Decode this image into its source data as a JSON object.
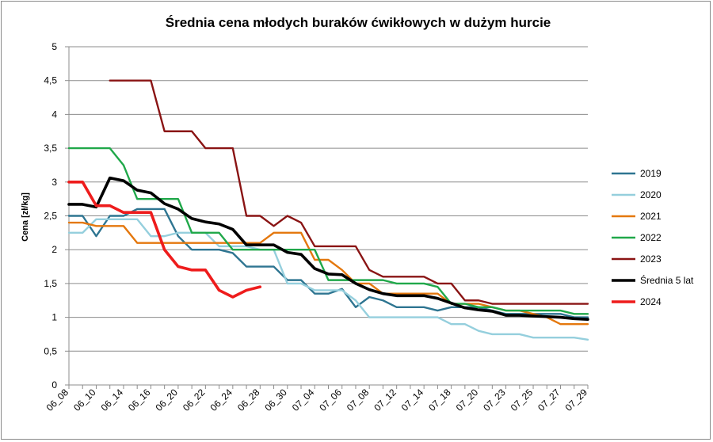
{
  "chart_data": {
    "type": "line",
    "title": "Średnia cena młodych buraków ćwikłowych w dużym hurcie",
    "xlabel": "",
    "ylabel": "Cena [zł/kg]",
    "ylim": [
      0,
      5
    ],
    "yticks": [
      {
        "value": 0,
        "label": "0"
      },
      {
        "value": 0.5,
        "label": "0,5"
      },
      {
        "value": 1,
        "label": "1"
      },
      {
        "value": 1.5,
        "label": "1,5"
      },
      {
        "value": 2,
        "label": "2"
      },
      {
        "value": 2.5,
        "label": "2,5"
      },
      {
        "value": 3,
        "label": "3"
      },
      {
        "value": 3.5,
        "label": "3,5"
      },
      {
        "value": 4,
        "label": "4"
      },
      {
        "value": 4.5,
        "label": "4,5"
      },
      {
        "value": 5,
        "label": "5"
      }
    ],
    "grid": true,
    "legend_position": "right",
    "categories": [
      "06_08",
      "06_09",
      "06_10",
      "06_11",
      "06_14",
      "06_15",
      "06_16",
      "06_17",
      "06_20",
      "06_21",
      "06_22",
      "06_23",
      "06_24",
      "06_25",
      "06_28",
      "06_29",
      "06_30",
      "07_01",
      "07_04",
      "07_05",
      "07_06",
      "07_07",
      "07_08",
      "07_11",
      "07_12",
      "07_13",
      "07_14",
      "07_15",
      "07_18",
      "07_19",
      "07_20",
      "07_22",
      "07_23",
      "07_24",
      "07_25",
      "07_26",
      "07_27",
      "07_28",
      "07_29"
    ],
    "tick_labels": [
      {
        "index": 0,
        "label": "06_08"
      },
      {
        "index": 2,
        "label": "06_10"
      },
      {
        "index": 4,
        "label": "06_14"
      },
      {
        "index": 6,
        "label": "06_16"
      },
      {
        "index": 8,
        "label": "06_20"
      },
      {
        "index": 10,
        "label": "06_22"
      },
      {
        "index": 12,
        "label": "06_24"
      },
      {
        "index": 14,
        "label": "06_28"
      },
      {
        "index": 16,
        "label": "06_30"
      },
      {
        "index": 18,
        "label": "07_04"
      },
      {
        "index": 20,
        "label": "07_06"
      },
      {
        "index": 22,
        "label": "07_08"
      },
      {
        "index": 24,
        "label": "07_12"
      },
      {
        "index": 26,
        "label": "07_14"
      },
      {
        "index": 28,
        "label": "07_18"
      },
      {
        "index": 30,
        "label": "07_20"
      },
      {
        "index": 32,
        "label": "07_23"
      },
      {
        "index": 34,
        "label": "07_25"
      },
      {
        "index": 36,
        "label": "07_27"
      },
      {
        "index": 38,
        "label": "07_29"
      }
    ],
    "series": [
      {
        "name": "2019",
        "color": "#2e7591",
        "width": 2.4,
        "values": [
          2.5,
          2.5,
          2.2,
          2.5,
          2.5,
          2.6,
          2.6,
          2.6,
          2.2,
          2.0,
          2.0,
          2.0,
          1.95,
          1.75,
          1.75,
          1.75,
          1.55,
          1.55,
          1.35,
          1.35,
          1.42,
          1.15,
          1.3,
          1.25,
          1.15,
          1.15,
          1.15,
          1.1,
          1.15,
          1.15,
          1.15,
          1.1,
          1.05,
          1.05,
          1.05,
          1.05,
          1.05,
          1.0,
          1.0
        ]
      },
      {
        "name": "2020",
        "color": "#95cfdd",
        "width": 2.4,
        "values": [
          2.25,
          2.25,
          2.45,
          2.45,
          2.45,
          2.45,
          2.2,
          2.2,
          2.25,
          2.25,
          2.25,
          2.05,
          2.05,
          2.05,
          2.0,
          2.0,
          1.5,
          1.5,
          1.4,
          1.4,
          1.4,
          1.25,
          1.0,
          1.0,
          1.0,
          1.0,
          1.0,
          1.0,
          0.9,
          0.9,
          0.8,
          0.75,
          0.75,
          0.75,
          0.7,
          0.7,
          0.7,
          0.7,
          0.67
        ]
      },
      {
        "name": "2021",
        "color": "#e4780e",
        "width": 2.4,
        "values": [
          2.4,
          2.4,
          2.35,
          2.35,
          2.35,
          2.1,
          2.1,
          2.1,
          2.1,
          2.1,
          2.1,
          2.1,
          2.1,
          2.1,
          2.1,
          2.25,
          2.25,
          2.25,
          1.85,
          1.85,
          1.7,
          1.5,
          1.5,
          1.35,
          1.35,
          1.35,
          1.35,
          1.35,
          1.2,
          1.2,
          1.2,
          1.15,
          1.1,
          1.1,
          1.05,
          1.0,
          0.9,
          0.9,
          0.9
        ]
      },
      {
        "name": "2022",
        "color": "#20a84a",
        "width": 2.4,
        "values": [
          3.5,
          3.5,
          3.5,
          3.5,
          3.25,
          2.75,
          2.75,
          2.75,
          2.75,
          2.25,
          2.25,
          2.25,
          2.0,
          2.0,
          2.0,
          2.0,
          2.0,
          2.0,
          2.0,
          1.55,
          1.55,
          1.55,
          1.55,
          1.55,
          1.5,
          1.5,
          1.5,
          1.45,
          1.2,
          1.2,
          1.15,
          1.15,
          1.1,
          1.1,
          1.1,
          1.1,
          1.1,
          1.05,
          1.05
        ]
      },
      {
        "name": "2023",
        "color": "#8a1414",
        "width": 2.4,
        "values": [
          null,
          null,
          null,
          4.5,
          4.5,
          4.5,
          4.5,
          3.75,
          3.75,
          3.75,
          3.5,
          3.5,
          3.5,
          2.5,
          2.5,
          2.35,
          2.5,
          2.4,
          2.05,
          2.05,
          2.05,
          2.05,
          1.7,
          1.6,
          1.6,
          1.6,
          1.6,
          1.5,
          1.5,
          1.25,
          1.25,
          1.2,
          1.2,
          1.2,
          1.2,
          1.2,
          1.2,
          1.2,
          1.2
        ]
      },
      {
        "name": "Średnia 5 lat",
        "color": "#000000",
        "width": 3.6,
        "values": [
          2.67,
          2.67,
          2.63,
          3.06,
          3.02,
          2.88,
          2.84,
          2.68,
          2.6,
          2.46,
          2.41,
          2.38,
          2.3,
          2.07,
          2.07,
          2.07,
          1.96,
          1.93,
          1.72,
          1.64,
          1.63,
          1.5,
          1.41,
          1.35,
          1.32,
          1.32,
          1.32,
          1.28,
          1.21,
          1.14,
          1.11,
          1.09,
          1.03,
          1.03,
          1.02,
          1.01,
          1.0,
          0.98,
          0.97
        ]
      },
      {
        "name": "2024",
        "color": "#ee1c1c",
        "width": 3.6,
        "values": [
          3.0,
          3.0,
          2.65,
          2.65,
          2.55,
          2.55,
          2.55,
          2.0,
          1.75,
          1.7,
          1.7,
          1.4,
          1.3,
          1.4,
          1.45,
          null,
          null,
          null,
          null,
          null,
          null,
          null,
          null,
          null,
          null,
          null,
          null,
          null,
          null,
          null,
          null,
          null,
          null,
          null,
          null,
          null,
          null,
          null,
          null
        ]
      }
    ]
  }
}
